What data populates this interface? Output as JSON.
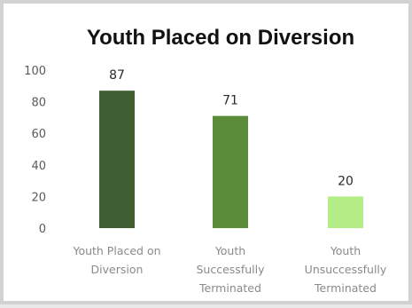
{
  "chart_data": {
    "type": "bar",
    "title": "Youth Placed on Diversion",
    "categories": [
      [
        "Youth Placed on",
        "Diversion"
      ],
      [
        "Youth",
        "Successfully",
        "Terminated"
      ],
      [
        "Youth",
        "Unsuccessfully",
        "Terminated"
      ]
    ],
    "values": [
      87,
      71,
      20
    ],
    "data_labels": [
      "87",
      "71",
      "20"
    ],
    "bar_colors": [
      "#3f5f33",
      "#5a8c3a",
      "#b4ec86"
    ],
    "y_ticks": [
      "100",
      "80",
      "60",
      "40",
      "20",
      "0"
    ],
    "ylim": [
      0,
      100
    ],
    "xlabel": "",
    "ylabel": "",
    "grid": false,
    "legend": false
  }
}
